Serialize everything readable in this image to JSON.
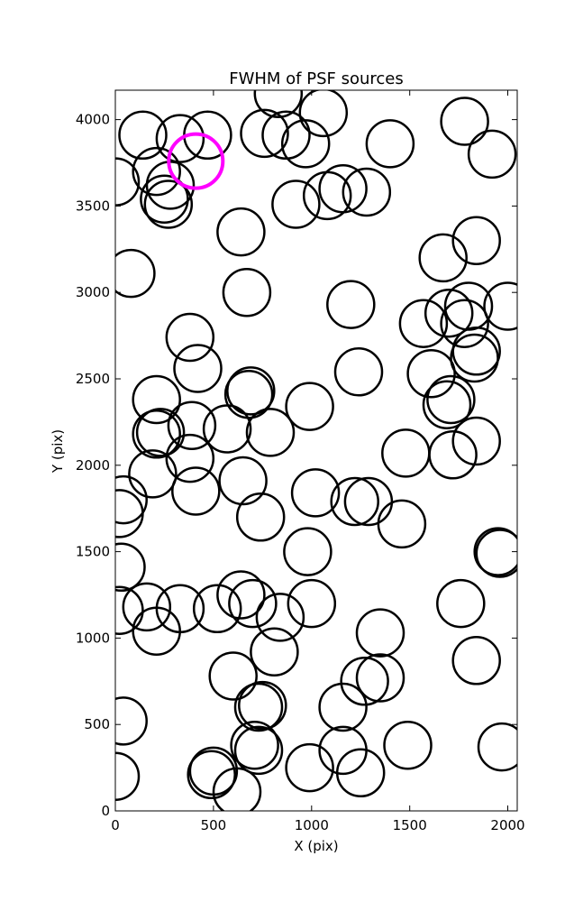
{
  "chart_data": {
    "type": "scatter",
    "marker": "open-circle",
    "title": "FWHM of PSF sources",
    "xlabel": "X (pix)",
    "ylabel": "Y (pix)",
    "xlim": [
      0,
      2048
    ],
    "ylim": [
      0,
      4170
    ],
    "xticks": [
      0,
      500,
      1000,
      1500,
      2000
    ],
    "yticks": [
      0,
      500,
      1000,
      1500,
      2000,
      2500,
      3000,
      3500,
      4000
    ],
    "grid": false,
    "colors": {
      "default": "#000000",
      "highlight": "#ff00ff"
    },
    "sources": [
      {
        "x": 140,
        "y": 3910
      },
      {
        "x": 330,
        "y": 3890
      },
      {
        "x": 470,
        "y": 3910
      },
      {
        "x": 210,
        "y": 3700
      },
      {
        "x": 280,
        "y": 3620
      },
      {
        "x": 250,
        "y": 3540
      },
      {
        "x": 270,
        "y": 3510
      },
      {
        "x": 0,
        "y": 3640
      },
      {
        "x": 760,
        "y": 3920
      },
      {
        "x": 870,
        "y": 3910
      },
      {
        "x": 970,
        "y": 3860
      },
      {
        "x": 830,
        "y": 4150
      },
      {
        "x": 1060,
        "y": 4040
      },
      {
        "x": 1400,
        "y": 3860
      },
      {
        "x": 1780,
        "y": 3990
      },
      {
        "x": 1920,
        "y": 3800
      },
      {
        "x": 920,
        "y": 3510
      },
      {
        "x": 1080,
        "y": 3560
      },
      {
        "x": 1160,
        "y": 3600
      },
      {
        "x": 1280,
        "y": 3580
      },
      {
        "x": 640,
        "y": 3350
      },
      {
        "x": 1840,
        "y": 3300
      },
      {
        "x": 1670,
        "y": 3200
      },
      {
        "x": 80,
        "y": 3110
      },
      {
        "x": 670,
        "y": 3000
      },
      {
        "x": 1200,
        "y": 2930
      },
      {
        "x": 1800,
        "y": 2920
      },
      {
        "x": 2000,
        "y": 2920
      },
      {
        "x": 1570,
        "y": 2820
      },
      {
        "x": 1700,
        "y": 2880
      },
      {
        "x": 1780,
        "y": 2820
      },
      {
        "x": 380,
        "y": 2740
      },
      {
        "x": 1840,
        "y": 2660
      },
      {
        "x": 1830,
        "y": 2620
      },
      {
        "x": 420,
        "y": 2560
      },
      {
        "x": 1610,
        "y": 2530
      },
      {
        "x": 1240,
        "y": 2540
      },
      {
        "x": 690,
        "y": 2430
      },
      {
        "x": 680,
        "y": 2410
      },
      {
        "x": 210,
        "y": 2380
      },
      {
        "x": 990,
        "y": 2340
      },
      {
        "x": 1710,
        "y": 2380
      },
      {
        "x": 1690,
        "y": 2350
      },
      {
        "x": 390,
        "y": 2230
      },
      {
        "x": 570,
        "y": 2210
      },
      {
        "x": 230,
        "y": 2190
      },
      {
        "x": 210,
        "y": 2180
      },
      {
        "x": 790,
        "y": 2190
      },
      {
        "x": 1840,
        "y": 2140
      },
      {
        "x": 1480,
        "y": 2070
      },
      {
        "x": 1720,
        "y": 2060
      },
      {
        "x": 380,
        "y": 2040
      },
      {
        "x": 190,
        "y": 1950
      },
      {
        "x": 650,
        "y": 1910
      },
      {
        "x": 410,
        "y": 1850
      },
      {
        "x": 1020,
        "y": 1840
      },
      {
        "x": 40,
        "y": 1800
      },
      {
        "x": 1220,
        "y": 1790
      },
      {
        "x": 1290,
        "y": 1790
      },
      {
        "x": 20,
        "y": 1720
      },
      {
        "x": 740,
        "y": 1700
      },
      {
        "x": 1460,
        "y": 1660
      },
      {
        "x": 980,
        "y": 1500
      },
      {
        "x": 1950,
        "y": 1500
      },
      {
        "x": 1960,
        "y": 1490
      },
      {
        "x": 30,
        "y": 1410
      },
      {
        "x": 640,
        "y": 1250
      },
      {
        "x": 700,
        "y": 1200
      },
      {
        "x": 1000,
        "y": 1200
      },
      {
        "x": 160,
        "y": 1180
      },
      {
        "x": 330,
        "y": 1170
      },
      {
        "x": 520,
        "y": 1170
      },
      {
        "x": 20,
        "y": 1160
      },
      {
        "x": 1760,
        "y": 1200
      },
      {
        "x": 840,
        "y": 1120
      },
      {
        "x": 210,
        "y": 1040
      },
      {
        "x": 1350,
        "y": 1030
      },
      {
        "x": 810,
        "y": 920
      },
      {
        "x": 1840,
        "y": 870
      },
      {
        "x": 600,
        "y": 780
      },
      {
        "x": 1270,
        "y": 750
      },
      {
        "x": 1350,
        "y": 770
      },
      {
        "x": 750,
        "y": 610
      },
      {
        "x": 730,
        "y": 600
      },
      {
        "x": 1160,
        "y": 600
      },
      {
        "x": 40,
        "y": 520
      },
      {
        "x": 1490,
        "y": 380
      },
      {
        "x": 1970,
        "y": 370
      },
      {
        "x": 710,
        "y": 380
      },
      {
        "x": 730,
        "y": 350
      },
      {
        "x": 1160,
        "y": 350
      },
      {
        "x": 990,
        "y": 250
      },
      {
        "x": 1250,
        "y": 220
      },
      {
        "x": 500,
        "y": 230
      },
      {
        "x": 490,
        "y": 210
      },
      {
        "x": 0,
        "y": 200
      },
      {
        "x": 620,
        "y": 110
      }
    ],
    "highlighted": [
      {
        "x": 410,
        "y": 3760
      }
    ]
  }
}
